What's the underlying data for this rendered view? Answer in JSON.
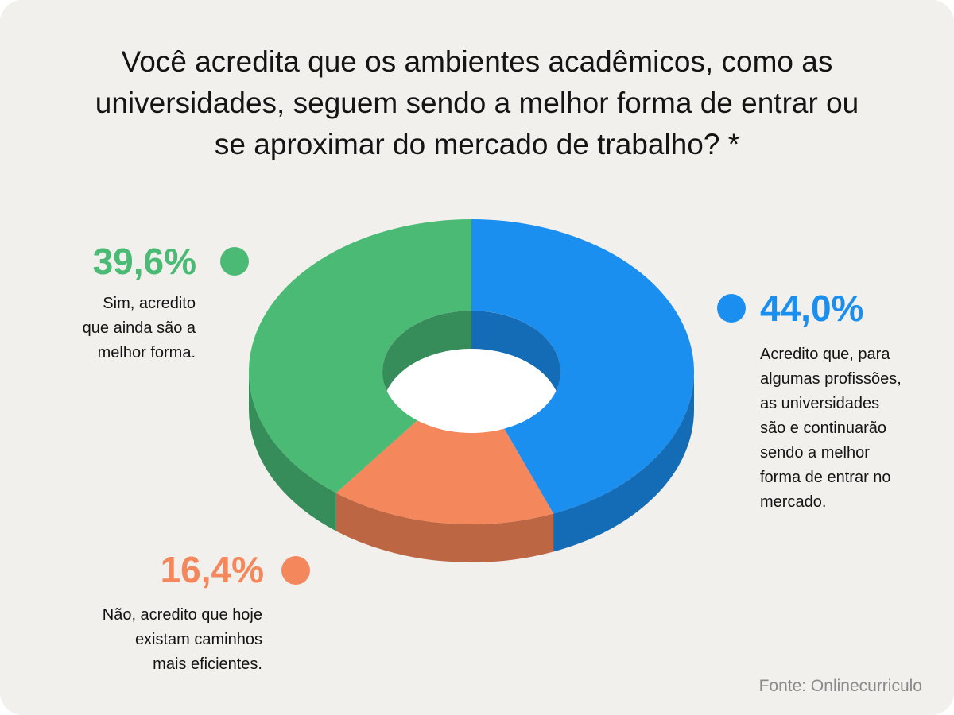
{
  "title_lines": [
    "Você acredita que os ambientes acadêmicos, como as",
    "universidades, seguem sendo a melhor forma de entrar ou",
    "se aproximar do mercado de trabalho? *"
  ],
  "source": "Fonte: Onlinecurriculo",
  "chart_data": {
    "type": "pie",
    "variant": "3d-donut",
    "title": "Você acredita que os ambientes acadêmicos, como as universidades, seguem sendo a melhor forma de entrar ou se aproximar do mercado de trabalho? *",
    "unit": "%",
    "legend_position": "labels around chart",
    "slices": [
      {
        "value": 44.0,
        "label": "44,0%",
        "color": "#1b8ff0",
        "side_color": "#146cb6",
        "description_lines": [
          "Acredito que, para",
          "algumas profissões,",
          "as universidades",
          "são e continuarão",
          "sendo a melhor",
          "forma de entrar no",
          "mercado."
        ]
      },
      {
        "value": 16.4,
        "label": "16,4%",
        "color": "#f4875c",
        "side_color": "#bd6644",
        "description_lines": [
          "Não, acredito que hoje",
          "existam caminhos",
          "mais eficientes."
        ]
      },
      {
        "value": 39.6,
        "label": "39,6%",
        "color": "#4aba75",
        "side_color": "#368d5a",
        "description_lines": [
          "Sim, acredito",
          "que ainda são a",
          "melhor forma."
        ]
      }
    ]
  }
}
